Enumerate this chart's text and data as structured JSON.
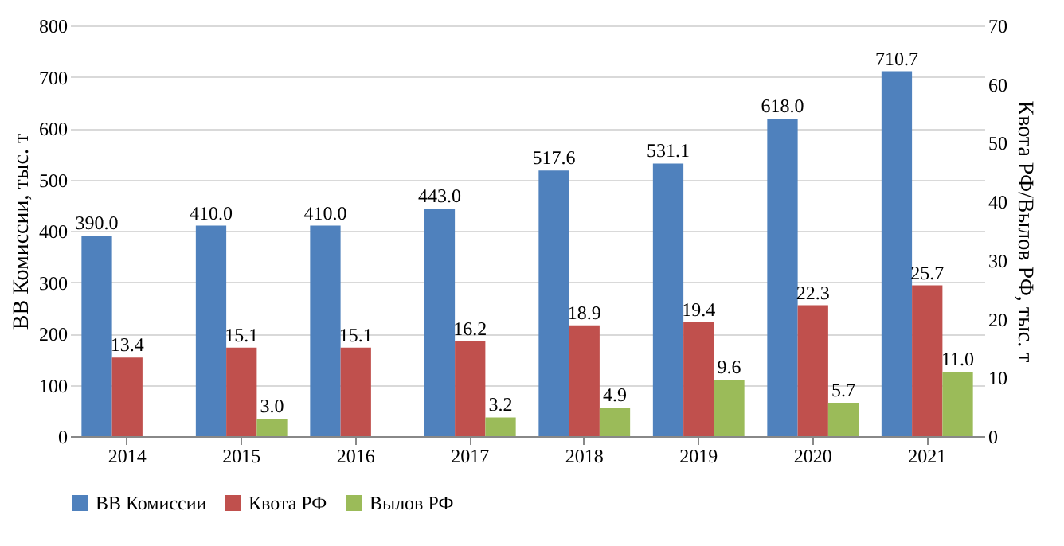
{
  "chart_data": {
    "type": "bar",
    "ylabel": "ВВ Комиссии, тыс. т",
    "y2label": "Квота РФ/Вылов РФ, тыс. т",
    "categories": [
      "2014",
      "2015",
      "2016",
      "2017",
      "2018",
      "2019",
      "2020",
      "2021"
    ],
    "series": [
      {
        "name": "ВВ Комиссии",
        "color": "#4f81bd",
        "values": [
          390,
          410,
          410,
          443,
          517.6,
          531.1,
          618,
          710.7
        ],
        "value_labels": [
          "390.0",
          "410.0",
          "410.0",
          "443.0",
          "517.6",
          "531.1",
          "618.0",
          "710.7"
        ]
      },
      {
        "name": "Квота РФ",
        "color": "#c0504d",
        "axis": "y2",
        "values": [
          13.4,
          15.1,
          15.1,
          16.2,
          18.9,
          19.4,
          22.3,
          25.7
        ],
        "value_labels": [
          "13.4",
          "15.1",
          "15.1",
          "16.2",
          "18.9",
          "19.4",
          "22.3",
          "25.7"
        ]
      },
      {
        "name": "Вылов РФ",
        "color": "#9bbb59",
        "axis": "y2",
        "values": [
          null,
          3.0,
          null,
          3.2,
          4.9,
          9.6,
          5.7,
          11.0
        ],
        "value_labels": [
          null,
          "3.0",
          null,
          "3.2",
          "4.9",
          "9.6",
          "5.7",
          "11.0"
        ]
      }
    ],
    "ylim": [
      0,
      800
    ],
    "yticks": [
      0,
      100,
      200,
      300,
      400,
      500,
      600,
      700,
      800
    ],
    "y2lim": [
      0,
      70
    ],
    "y2ticks": [
      0,
      10,
      20,
      30,
      40,
      50,
      60,
      70
    ],
    "grid": "y",
    "legend": "bottom"
  }
}
